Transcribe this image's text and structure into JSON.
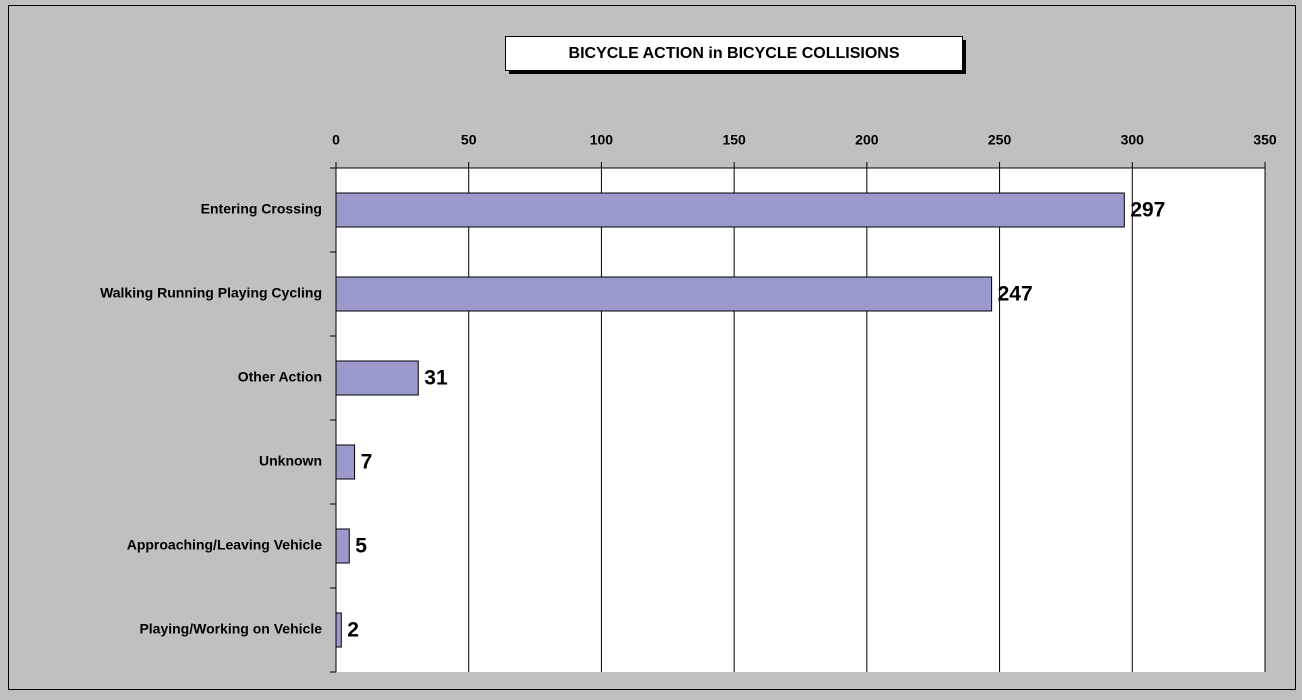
{
  "chart_data": {
    "type": "bar",
    "orientation": "horizontal",
    "title": "BICYCLE  ACTION in BICYCLE COLLISIONS",
    "categories": [
      "Entering Crossing",
      "Walking Running Playing Cycling",
      "Other Action",
      "Unknown",
      "Approaching/Leaving Vehicle",
      "Playing/Working on Vehicle"
    ],
    "values": [
      297,
      247,
      31,
      7,
      5,
      2
    ],
    "color": "#9999cc",
    "xlim": [
      0,
      350
    ],
    "xticks": [
      0,
      50,
      100,
      150,
      200,
      250,
      300,
      350
    ],
    "grid": true
  }
}
